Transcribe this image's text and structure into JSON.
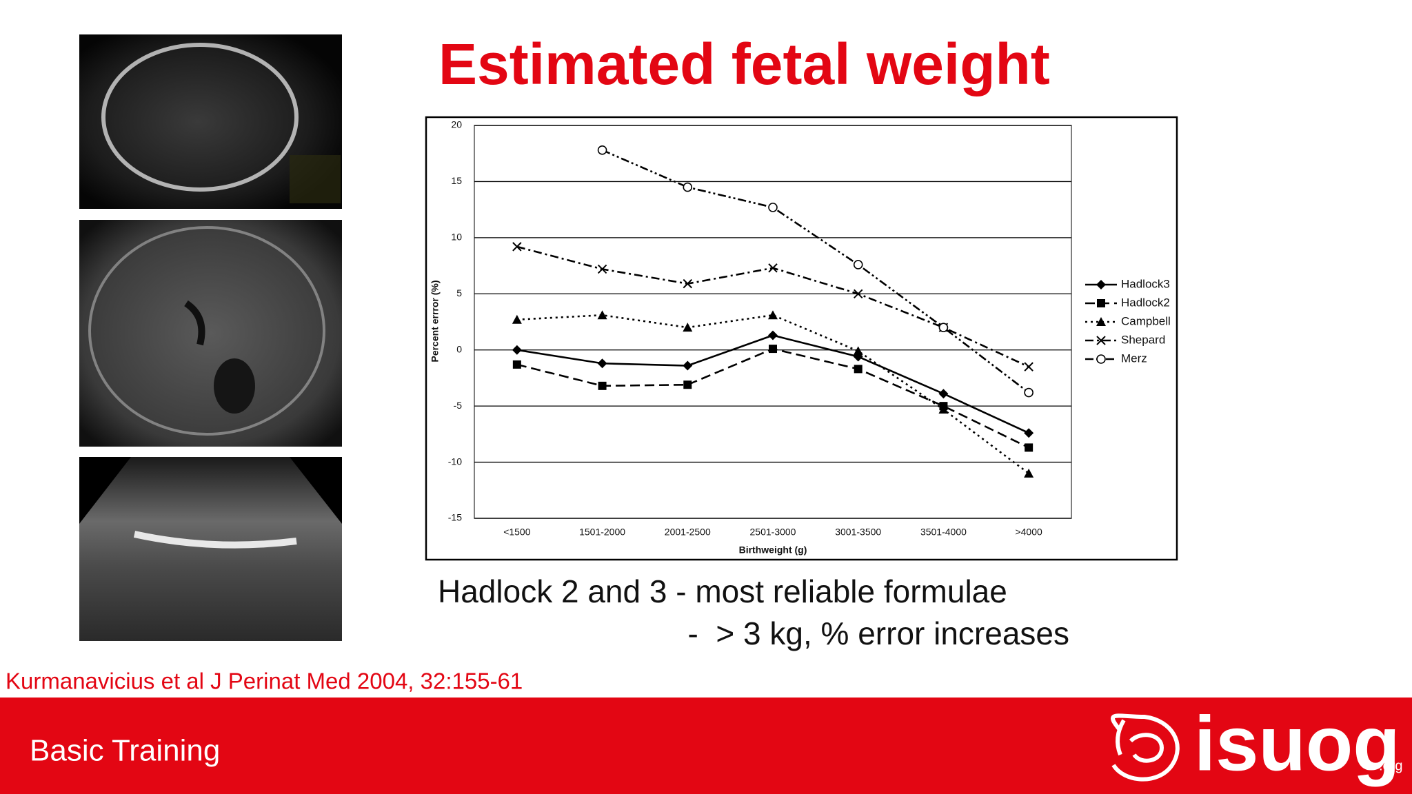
{
  "title": "Estimated fetal weight",
  "chart_data": {
    "type": "line",
    "x_label": "Birthweight (g)",
    "y_label": "Percent errror (%)",
    "categories": [
      "<1500",
      "1501-2000",
      "2001-2500",
      "2501-3000",
      "3001-3500",
      "3501-4000",
      ">4000"
    ],
    "ylim": [
      -15,
      20
    ],
    "yticks": [
      -15,
      -10,
      -5,
      0,
      5,
      10,
      15,
      20
    ],
    "grid": true,
    "series": [
      {
        "name": "Hadlock3",
        "color": "#000000",
        "marker": "diamond",
        "line_style": "solid",
        "values": [
          0,
          -1.2,
          -1.4,
          1.3,
          -0.6,
          -3.9,
          -7.4
        ]
      },
      {
        "name": "Hadlock2",
        "color": "#000000",
        "marker": "square",
        "line_style": "dashed",
        "values": [
          -1.3,
          -3.2,
          -3.1,
          0.1,
          -1.7,
          -5.0,
          -8.7
        ]
      },
      {
        "name": "Campbell",
        "color": "#000000",
        "marker": "triangle",
        "line_style": "dotted",
        "values": [
          2.7,
          3.1,
          2.0,
          3.1,
          -0.1,
          -5.3,
          -11.0
        ]
      },
      {
        "name": "Shepard",
        "color": "#000000",
        "marker": "x",
        "line_style": "dashdot",
        "values": [
          9.2,
          7.2,
          5.9,
          7.3,
          5.0,
          2.0,
          -1.5
        ]
      },
      {
        "name": "Merz",
        "color": "#000000",
        "marker": "circle",
        "line_style": "dashdotdot",
        "values": [
          null,
          17.8,
          14.5,
          12.7,
          7.6,
          2.0,
          -3.8
        ]
      }
    ]
  },
  "notes": [
    "Hadlock 2 and 3 - most reliable formulae",
    "-  > 3 kg, % error increases"
  ],
  "citation": "Kurmanavicius et al J Perinat Med 2004, 32:155-61",
  "footer": {
    "label": "Basic Training",
    "logo": "isuog",
    "logo_suffix": ".org"
  }
}
